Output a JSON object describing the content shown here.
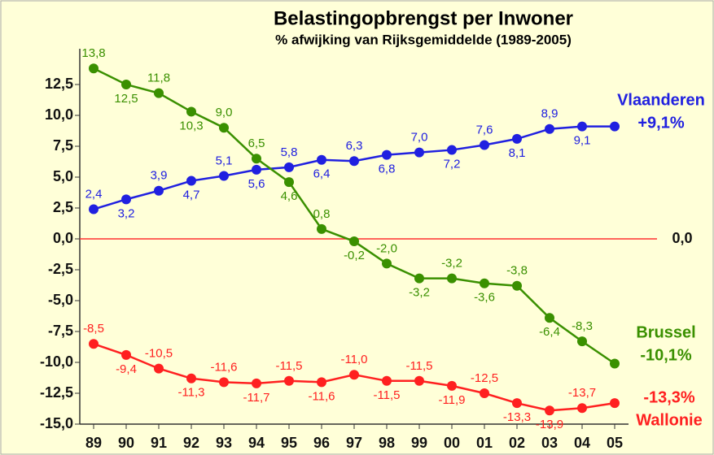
{
  "chart_data": {
    "type": "line",
    "title": "Belastingopbrengst per Inwoner",
    "subtitle": "% afwijking van Rijksgemiddelde (1989-2005)",
    "categories": [
      "89",
      "90",
      "91",
      "92",
      "93",
      "94",
      "95",
      "96",
      "97",
      "98",
      "99",
      "00",
      "01",
      "02",
      "03",
      "04",
      "05"
    ],
    "ylim": [
      -15,
      15
    ],
    "yticks": [
      {
        "value": -15,
        "label": "-15,0"
      },
      {
        "value": -12.5,
        "label": "-12,5"
      },
      {
        "value": -10,
        "label": "-10,0"
      },
      {
        "value": -7.5,
        "label": "-7,5"
      },
      {
        "value": -5,
        "label": "-5,0"
      },
      {
        "value": -2.5,
        "label": "-2,5"
      },
      {
        "value": 0,
        "label": "0,0"
      },
      {
        "value": 2.5,
        "label": "2,5"
      },
      {
        "value": 5,
        "label": "5,0"
      },
      {
        "value": 7.5,
        "label": "7,5"
      },
      {
        "value": 10,
        "label": "10,0"
      },
      {
        "value": 12.5,
        "label": "12,5"
      }
    ],
    "reference_line": {
      "value": 0,
      "label": "0,0",
      "color": "#ff3030"
    },
    "series": [
      {
        "name": "Vlaanderen",
        "end_label": "+9,1%",
        "color": "#2020e0",
        "values": [
          2.4,
          3.2,
          3.9,
          4.7,
          5.1,
          5.6,
          5.8,
          6.4,
          6.3,
          6.8,
          7.0,
          7.2,
          7.6,
          8.1,
          8.9,
          9.1,
          9.1
        ],
        "value_labels": [
          "2,4",
          "3,2",
          "3,9",
          "4,7",
          "5,1",
          "5,6",
          "5,8",
          "6,4",
          "6,3",
          "6,8",
          "7,0",
          "7,2",
          "7,6",
          "8,1",
          "8,9",
          "9,1",
          null
        ]
      },
      {
        "name": "Brussel",
        "end_label": "-10,1%",
        "color": "#3a9000",
        "values": [
          13.8,
          12.5,
          11.8,
          10.3,
          9.0,
          6.5,
          4.6,
          0.8,
          -0.2,
          -2.0,
          -3.2,
          -3.2,
          -3.6,
          -3.8,
          -6.4,
          -8.3,
          -10.1
        ],
        "value_labels": [
          "13,8",
          "12,5",
          "11,8",
          "10,3",
          "9,0",
          "6,5",
          "4,6",
          "0,8",
          "-0,2",
          "-2,0",
          "-3,2",
          "-3,2",
          "-3,6",
          "-3,8",
          "-6,4",
          "-8,3",
          null
        ]
      },
      {
        "name": "Wallonie",
        "end_label": "-13,3%",
        "color": "#ff2020",
        "values": [
          -8.5,
          -9.4,
          -10.5,
          -11.3,
          -11.6,
          -11.7,
          -11.5,
          -11.6,
          -11.0,
          -11.5,
          -11.5,
          -11.9,
          -12.5,
          -13.3,
          -13.9,
          -13.7,
          -13.3
        ],
        "value_labels": [
          "-8,5",
          "-9,4",
          "-10,5",
          "-11,3",
          "-11,6",
          "-11,7",
          "-11,5",
          "-11,6",
          "-11,0",
          "-11,5",
          "-11,5",
          "-11,9",
          "-12,5",
          "-13,3",
          "-13,9",
          "-13,7",
          null
        ]
      }
    ]
  }
}
